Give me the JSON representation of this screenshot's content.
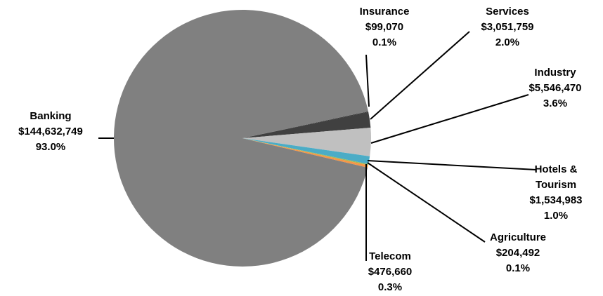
{
  "chart_data": {
    "type": "pie",
    "categories": [
      "Insurance",
      "Services",
      "Industry",
      "Hotels & Tourism",
      "Agriculture",
      "Telecom",
      "Banking"
    ],
    "values": [
      99070,
      3051759,
      5546470,
      1534983,
      204492,
      476660,
      144632749
    ],
    "value_labels": [
      "$99,070",
      "$3,051,759",
      "$5,546,470",
      "$1,534,983",
      "$204,492",
      "$476,660",
      "$144,632,749"
    ],
    "percent_values": [
      0.1,
      2.0,
      3.6,
      1.0,
      0.1,
      0.3,
      93.0
    ],
    "percent_labels": [
      "0.1%",
      "2.0%",
      "3.6%",
      "1.0%",
      "0.1%",
      "0.3%",
      "93.0%"
    ],
    "colors": [
      "#1a1a1a",
      "#404040",
      "#c0c0c0",
      "#4bacc6",
      "#9bbb59",
      "#f79646",
      "#808080"
    ]
  }
}
